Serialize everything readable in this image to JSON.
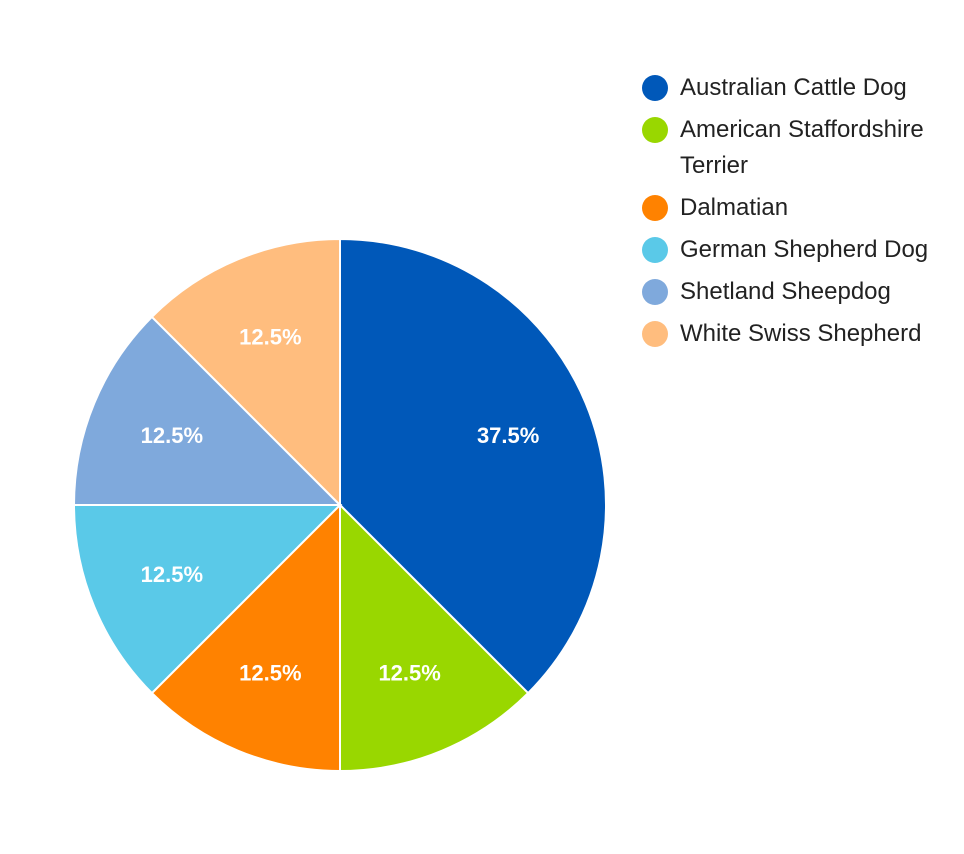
{
  "chart_data": {
    "type": "pie",
    "categories": [
      "Australian Cattle Dog",
      "American Staffordshire Terrier",
      "Dalmatian",
      "German Shepherd Dog",
      "Shetland Sheepdog",
      "White Swiss Shepherd"
    ],
    "values": [
      37.5,
      12.5,
      12.5,
      12.5,
      12.5,
      12.5
    ],
    "labels": [
      "37.5%",
      "12.5%",
      "12.5%",
      "12.5%",
      "12.5%",
      "12.5%"
    ],
    "colors": [
      "#0058b9",
      "#99d700",
      "#ff8200",
      "#5ac9e8",
      "#7fa9dc",
      "#ffbd7e"
    ],
    "legend_position": "right",
    "start_angle_deg": 0,
    "direction": "clockwise"
  }
}
